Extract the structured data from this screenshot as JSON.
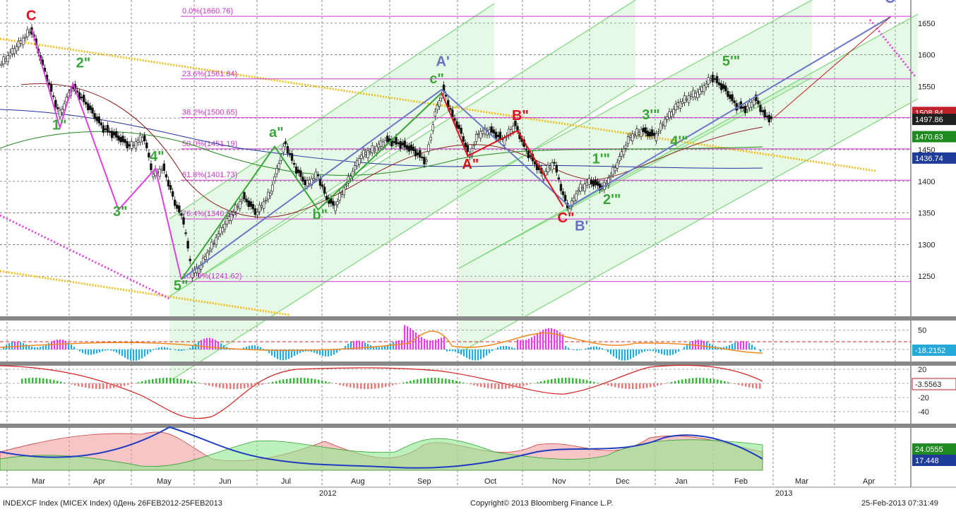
{
  "header": {
    "title": "",
    "footer_left": "INDEXCF Index (MICEX Index) 0День 26FEB2012-25FEB2013",
    "footer_center": "Copyright© 2013 Bloomberg Finance L.P.",
    "footer_right": "25-Feb-2013 07:31:49"
  },
  "chart_data": {
    "type": "candlestick",
    "title": "",
    "x_months": [
      "Mar",
      "Apr",
      "May",
      "Jun",
      "Jul",
      "Aug",
      "Sep",
      "Oct",
      "Nov",
      "Dec",
      "Jan",
      "Feb",
      "Mar",
      "Apr"
    ],
    "year_labels": [
      "2012",
      "2013"
    ],
    "main_axis": {
      "ylim": [
        1200,
        1700
      ],
      "ticks": [
        1250,
        1300,
        1350,
        1400,
        1450,
        1500,
        1550,
        1600,
        1650
      ]
    },
    "fib_levels": [
      {
        "label": "0.0%(1660.76)",
        "value": 1660.76
      },
      {
        "label": "23.6%(1561.84)",
        "value": 1561.84
      },
      {
        "label": "38.2%(1500.65)",
        "value": 1500.65
      },
      {
        "label": "50.0%(1451.19)",
        "value": 1451.19
      },
      {
        "label": "61.8%(1401.73)",
        "value": 1401.73
      },
      {
        "label": "76.4%(1340.51)",
        "value": 1340.51
      },
      {
        "label": "100.0%(1241.62)",
        "value": 1241.62
      }
    ],
    "price_path": [
      [
        0,
        1585
      ],
      [
        8,
        1615
      ],
      [
        14,
        1640
      ],
      [
        20,
        1575
      ],
      [
        27,
        1505
      ],
      [
        33,
        1550
      ],
      [
        40,
        1520
      ],
      [
        47,
        1485
      ],
      [
        54,
        1470
      ],
      [
        60,
        1455
      ],
      [
        66,
        1470
      ],
      [
        70,
        1410
      ],
      [
        75,
        1420
      ],
      [
        80,
        1368
      ],
      [
        84,
        1340
      ],
      [
        88,
        1255
      ],
      [
        91,
        1260
      ],
      [
        96,
        1290
      ],
      [
        101,
        1320
      ],
      [
        106,
        1345
      ],
      [
        112,
        1375
      ],
      [
        118,
        1350
      ],
      [
        124,
        1380
      ],
      [
        131,
        1460
      ],
      [
        136,
        1420
      ],
      [
        141,
        1395
      ],
      [
        146,
        1410
      ],
      [
        150,
        1375
      ],
      [
        154,
        1360
      ],
      [
        160,
        1400
      ],
      [
        166,
        1440
      ],
      [
        172,
        1450
      ],
      [
        178,
        1465
      ],
      [
        184,
        1460
      ],
      [
        190,
        1450
      ],
      [
        196,
        1432
      ],
      [
        200,
        1505
      ],
      [
        204,
        1545
      ],
      [
        208,
        1505
      ],
      [
        212,
        1478
      ],
      [
        216,
        1440
      ],
      [
        220,
        1475
      ],
      [
        226,
        1480
      ],
      [
        232,
        1465
      ],
      [
        237,
        1490
      ],
      [
        242,
        1450
      ],
      [
        246,
        1430
      ],
      [
        250,
        1410
      ],
      [
        255,
        1430
      ],
      [
        259,
        1380
      ],
      [
        262,
        1355
      ],
      [
        266,
        1385
      ],
      [
        272,
        1400
      ],
      [
        278,
        1390
      ],
      [
        283,
        1420
      ],
      [
        290,
        1470
      ],
      [
        296,
        1480
      ],
      [
        302,
        1472
      ],
      [
        306,
        1495
      ],
      [
        312,
        1520
      ],
      [
        318,
        1535
      ],
      [
        322,
        1540
      ],
      [
        328,
        1565
      ],
      [
        334,
        1545
      ],
      [
        339,
        1520
      ],
      [
        344,
        1515
      ],
      [
        348,
        1530
      ],
      [
        352,
        1505
      ],
      [
        356,
        1498
      ]
    ],
    "markers": [
      {
        "label": "C",
        "color": "#e0101c",
        "x": 14,
        "y": 1655
      },
      {
        "label": "2\"",
        "color": "#3aa63a",
        "x": 37,
        "y": 1580
      },
      {
        "label": "1\"",
        "color": "#3aa63a",
        "x": 26,
        "y": 1482
      },
      {
        "label": "4\"",
        "color": "#3aa63a",
        "x": 71,
        "y": 1432
      },
      {
        "label": "3\"",
        "color": "#3aa63a",
        "x": 54,
        "y": 1345
      },
      {
        "label": "5\"",
        "color": "#3aa63a",
        "x": 82,
        "y": 1228
      },
      {
        "label": "a\"",
        "color": "#3aa63a",
        "x": 126,
        "y": 1470
      },
      {
        "label": "b\"",
        "color": "#3aa63a",
        "x": 146,
        "y": 1340
      },
      {
        "label": "A'",
        "color": "#6a6fbf",
        "x": 203,
        "y": 1582
      },
      {
        "label": "c\"",
        "color": "#3aa63a",
        "x": 200,
        "y": 1555
      },
      {
        "label": "B\"",
        "color": "#e0101c",
        "x": 238,
        "y": 1497
      },
      {
        "label": "A\"",
        "color": "#e0101c",
        "x": 215,
        "y": 1420
      },
      {
        "label": "1'\"",
        "color": "#3aa63a",
        "x": 275,
        "y": 1428
      },
      {
        "label": "C\"",
        "color": "#e0101c",
        "x": 259,
        "y": 1335
      },
      {
        "label": "B'",
        "color": "#6a6fbf",
        "x": 267,
        "y": 1322
      },
      {
        "label": "2'\"",
        "color": "#3aa63a",
        "x": 280,
        "y": 1364
      },
      {
        "label": "3'\"",
        "color": "#3aa63a",
        "x": 298,
        "y": 1498
      },
      {
        "label": "4'\"",
        "color": "#3aa63a",
        "x": 311,
        "y": 1456
      },
      {
        "label": "5'\"",
        "color": "#3aa63a",
        "x": 335,
        "y": 1583
      },
      {
        "label": "C'",
        "color": "#6a6fbf",
        "x": 410,
        "y": 1682
      }
    ],
    "zigzag_wave": [
      [
        14,
        1640
      ],
      [
        27,
        1485
      ],
      [
        33,
        1555
      ],
      [
        54,
        1355
      ],
      [
        71,
        1420
      ],
      [
        83,
        1245
      ]
    ],
    "zigzag_abc": [
      [
        83,
        1245
      ],
      [
        126,
        1455
      ],
      [
        146,
        1355
      ],
      [
        203,
        1540
      ]
    ],
    "zigzag_abc2": [
      [
        203,
        1540
      ],
      [
        215,
        1440
      ],
      [
        238,
        1480
      ],
      [
        259,
        1360
      ]
    ],
    "zigzag_blue": [
      [
        83,
        1245
      ],
      [
        203,
        1545
      ],
      [
        262,
        1360
      ],
      [
        410,
        1660
      ]
    ],
    "zigzag_red_forecast": [
      [
        356,
        1500
      ],
      [
        410,
        1660
      ]
    ],
    "right_labels": [
      {
        "text": "1508.84",
        "value": 1508.84,
        "color": "#c0202a"
      },
      {
        "text": "1497.86",
        "value": 1497.86,
        "color": "#202020"
      },
      {
        "text": "1470.63",
        "value": 1470.63,
        "color": "#1f8a1f"
      },
      {
        "text": "1436.74",
        "value": 1436.74,
        "color": "#1f3c9a"
      }
    ],
    "panel1": {
      "ticks": [
        50,
        0
      ],
      "label": "-18.2152",
      "label_color": "#25a9d8"
    },
    "panel2": {
      "ticks": [
        20,
        0,
        -20,
        -40
      ],
      "label": "-3.5563",
      "label_color": "#c0202a"
    },
    "panel3": {
      "labels": [
        {
          "text": "24.0555",
          "color": "#1f8a1f"
        },
        {
          "text": "17.448",
          "color": "#1f3c9a"
        }
      ]
    }
  },
  "colors": {
    "fib": "#cc33cc",
    "channel": "#7dd87d",
    "trend_yellow": "#f0c020",
    "pink": "#e040e0",
    "grid": "#555555"
  }
}
